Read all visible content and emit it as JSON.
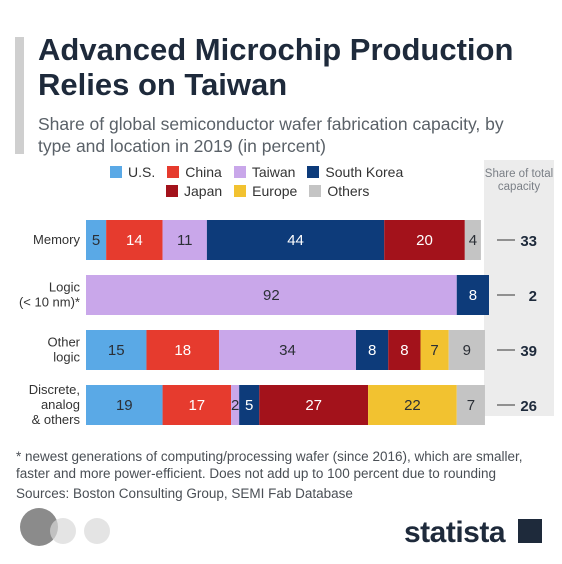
{
  "header": {
    "title": "Advanced Microchip Production Relies on Taiwan",
    "subtitle": "Share of global semiconductor wafer fabrication capacity, by type and location in 2019 (in percent)"
  },
  "share_header": "Share of total capacity",
  "footer": {
    "footnote": "* newest generations of computing/processing wafer (since 2016), which are smaller, faster and more power-efficient. Does not add up to 100 percent due to rounding",
    "sources": "Sources: Boston Consulting Group, SEMI Fab Database",
    "brand": "statista"
  },
  "chart_data": {
    "type": "bar",
    "orientation": "horizontal",
    "stacked": true,
    "categories": [
      "Memory",
      "Logic (< 10 nm)*",
      "Other logic",
      "Discrete, analog & others"
    ],
    "category_lines": [
      [
        "Memory"
      ],
      [
        "Logic",
        "(< 10 nm)*"
      ],
      [
        "Other",
        "logic"
      ],
      [
        "Discrete,",
        "analog",
        "& others"
      ]
    ],
    "series": [
      {
        "name": "U.S.",
        "color": "#5aa9e6",
        "values": [
          5,
          0,
          15,
          19
        ]
      },
      {
        "name": "China",
        "color": "#e63b2e",
        "values": [
          14,
          0,
          18,
          17
        ]
      },
      {
        "name": "Taiwan",
        "color": "#c9a7ea",
        "values": [
          11,
          92,
          34,
          2
        ]
      },
      {
        "name": "South Korea",
        "color": "#0d3b7a",
        "values": [
          44,
          8,
          8,
          5
        ]
      },
      {
        "name": "Japan",
        "color": "#a3121b",
        "values": [
          20,
          0,
          8,
          27
        ]
      },
      {
        "name": "Europe",
        "color": "#f2c230",
        "values": [
          0,
          0,
          7,
          22
        ]
      },
      {
        "name": "Others",
        "color": "#c4c4c4",
        "values": [
          4,
          0,
          9,
          7
        ]
      }
    ],
    "share_of_total": [
      33,
      2,
      39,
      26
    ],
    "legend_rows": [
      [
        "U.S.",
        "China",
        "Taiwan",
        "South Korea"
      ],
      [
        "Japan",
        "Europe",
        "Others"
      ]
    ],
    "xlim": [
      0,
      100
    ]
  }
}
